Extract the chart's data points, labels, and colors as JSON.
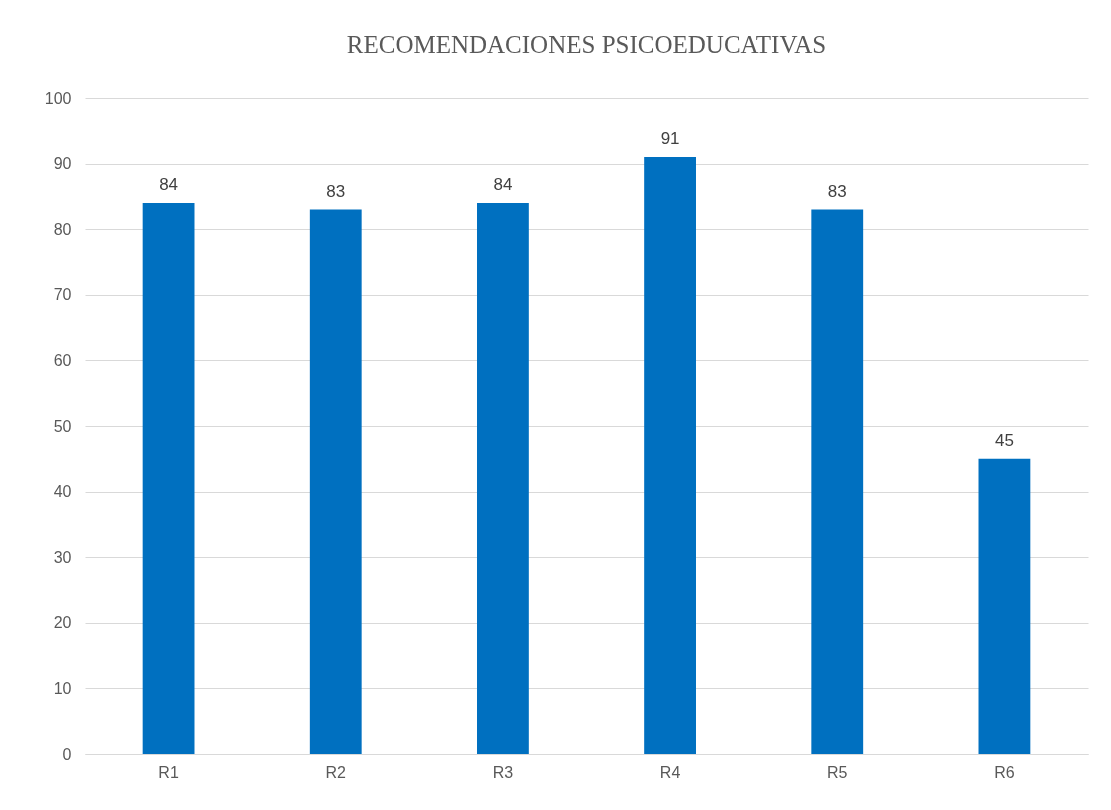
{
  "chart_data": {
    "type": "bar",
    "title": "RECOMENDACIONES PSICOEDUCATIVAS",
    "categories": [
      "R1",
      "R2",
      "R3",
      "R4",
      "R5",
      "R6"
    ],
    "values": [
      84,
      83,
      84,
      91,
      83,
      45
    ],
    "color": "#0070c0",
    "ylim": [
      0,
      100
    ],
    "yticks": [
      0,
      10,
      20,
      30,
      40,
      50,
      60,
      70,
      80,
      90,
      100
    ],
    "grid": "y",
    "data_labels": true
  }
}
